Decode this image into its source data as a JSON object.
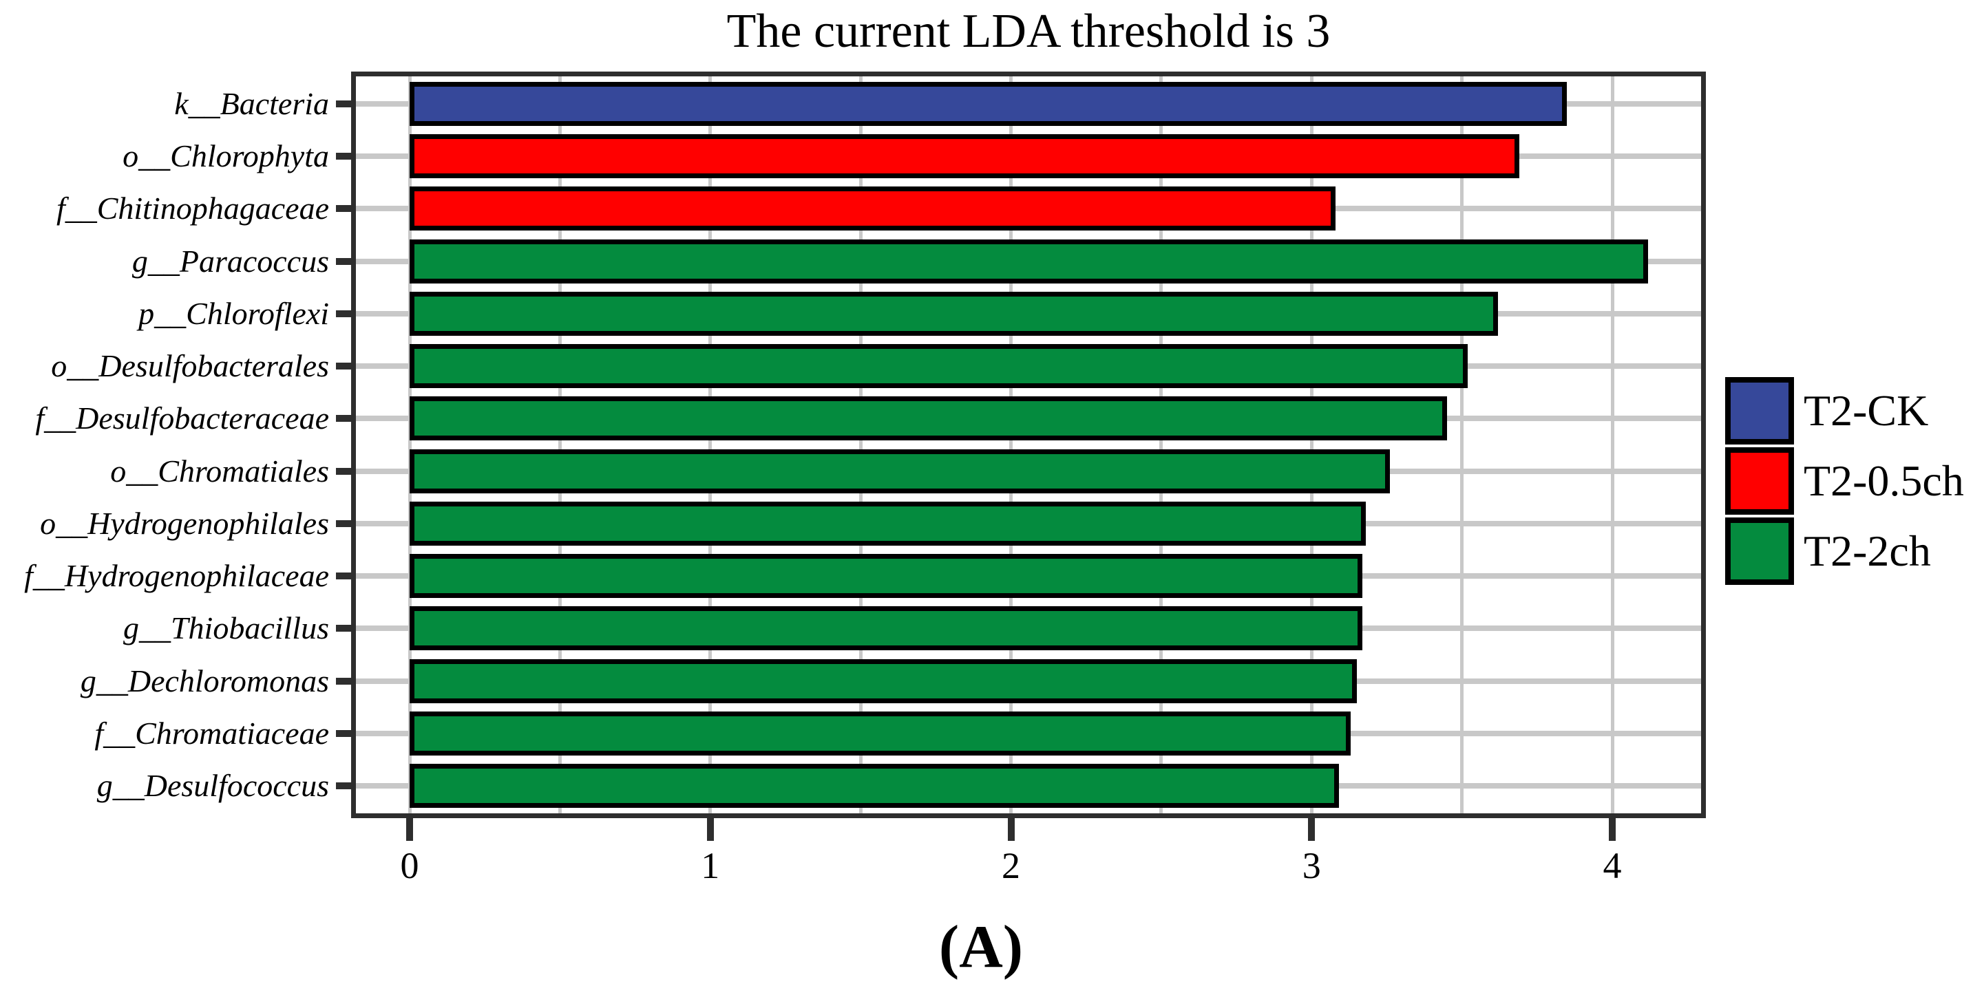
{
  "title": "The current LDA threshold is 3",
  "caption": "(A)",
  "legend": {
    "position": "right",
    "items": [
      {
        "label": "T2-CK",
        "color": "#36489A"
      },
      {
        "label": "T2-0.5ch",
        "color": "#FF0000"
      },
      {
        "label": "T2-2ch",
        "color": "#048B3E"
      }
    ]
  },
  "axis": {
    "xtick_labels": [
      "0",
      "1",
      "2",
      "3",
      "4"
    ]
  },
  "chart_data": {
    "type": "bar",
    "orientation": "horizontal",
    "title": "The current LDA threshold is 3",
    "xlabel": "",
    "ylabel": "",
    "xlim": [
      0,
      4.31
    ],
    "xticks": [
      0,
      1,
      2,
      3,
      4
    ],
    "minor_gridline_step": 0.5,
    "grid": true,
    "legend_position": "right",
    "groups": [
      {
        "name": "T2-CK",
        "color": "#36489A"
      },
      {
        "name": "T2-0.5ch",
        "color": "#FF0000"
      },
      {
        "name": "T2-2ch",
        "color": "#048B3E"
      }
    ],
    "bars": [
      {
        "category": "k__Bacteria",
        "value": 3.85,
        "group": "T2-CK"
      },
      {
        "category": "o__Chlorophyta",
        "value": 3.69,
        "group": "T2-0.5ch"
      },
      {
        "category": "f__Chitinophagaceae",
        "value": 3.08,
        "group": "T2-0.5ch"
      },
      {
        "category": "g__Paracoccus",
        "value": 4.12,
        "group": "T2-2ch"
      },
      {
        "category": "p__Chloroflexi",
        "value": 3.62,
        "group": "T2-2ch"
      },
      {
        "category": "o__Desulfobacterales",
        "value": 3.52,
        "group": "T2-2ch"
      },
      {
        "category": "f__Desulfobacteraceae",
        "value": 3.45,
        "group": "T2-2ch"
      },
      {
        "category": "o__Chromatiales",
        "value": 3.26,
        "group": "T2-2ch"
      },
      {
        "category": "o__Hydrogenophilales",
        "value": 3.18,
        "group": "T2-2ch"
      },
      {
        "category": "f__Hydrogenophilaceae",
        "value": 3.17,
        "group": "T2-2ch"
      },
      {
        "category": "g__Thiobacillus",
        "value": 3.17,
        "group": "T2-2ch"
      },
      {
        "category": "g__Dechloromonas",
        "value": 3.15,
        "group": "T2-2ch"
      },
      {
        "category": "f__Chromatiaceae",
        "value": 3.13,
        "group": "T2-2ch"
      },
      {
        "category": "g__Desulfococcus",
        "value": 3.09,
        "group": "T2-2ch"
      }
    ]
  }
}
